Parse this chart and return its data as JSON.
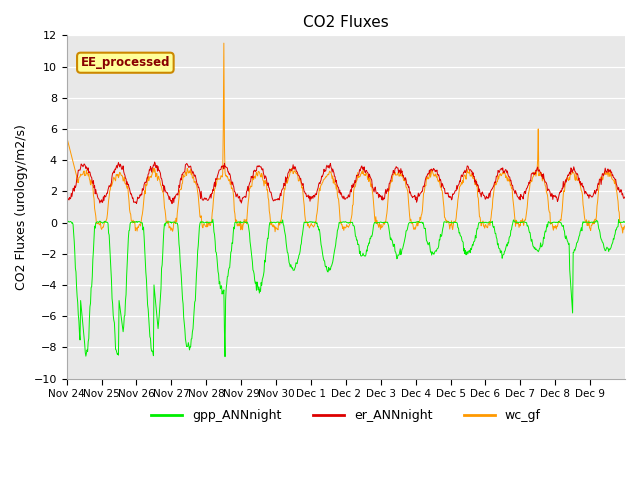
{
  "title": "CO2 Fluxes",
  "ylabel": "CO2 Fluxes (urology/m2/s)",
  "ylim": [
    -10,
    12
  ],
  "yticks": [
    -10,
    -8,
    -6,
    -4,
    -2,
    0,
    2,
    4,
    6,
    8,
    10,
    12
  ],
  "background_color": "#ffffff",
  "plot_bg_color": "#e8e8e8",
  "annotation_text": "EE_processed",
  "annotation_bg": "#ffff99",
  "annotation_border": "#cc8800",
  "annotation_text_color": "#880000",
  "line_colors": {
    "gpp": "#00ee00",
    "er": "#dd0000",
    "wc": "#ff9900"
  },
  "legend_labels": [
    "gpp_ANNnight",
    "er_ANNnight",
    "wc_gf"
  ],
  "x_tick_labels": [
    "Nov 24",
    "Nov 25",
    "Nov 26",
    "Nov 27",
    "Nov 28",
    "Nov 29",
    "Nov 30",
    "Dec 1",
    "Dec 2",
    "Dec 3",
    "Dec 4",
    "Dec 5",
    "Dec 6",
    "Dec 7",
    "Dec 8",
    "Dec 9"
  ],
  "n_points": 960,
  "days": 16,
  "linewidth": 0.7
}
